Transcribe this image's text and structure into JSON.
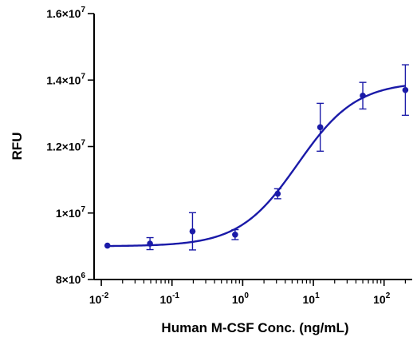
{
  "chart_data": {
    "type": "scatter",
    "title": "",
    "xlabel": "Human M-CSF Conc. (ng/mL)",
    "ylabel": "RFU",
    "x_scale": "log",
    "xlim": [
      0.0079,
      250
    ],
    "ylim": [
      8000000,
      16000000
    ],
    "x_ticks": [
      {
        "value": 0.01,
        "base": "10",
        "exp": "-2"
      },
      {
        "value": 0.1,
        "base": "10",
        "exp": "-1"
      },
      {
        "value": 1,
        "base": "10",
        "exp": "0"
      },
      {
        "value": 10,
        "base": "10",
        "exp": "1"
      },
      {
        "value": 100,
        "base": "10",
        "exp": "2"
      }
    ],
    "y_ticks": [
      {
        "value": 8000000,
        "mant": "8×10",
        "exp": "6"
      },
      {
        "value": 10000000,
        "mant": "1×10",
        "exp": "7"
      },
      {
        "value": 12000000,
        "mant": "1.2×10",
        "exp": "7"
      },
      {
        "value": 14000000,
        "mant": "1.4×10",
        "exp": "7"
      },
      {
        "value": 16000000,
        "mant": "1.6×10",
        "exp": "7"
      }
    ],
    "series": [
      {
        "color": "#1a1aa8",
        "x": [
          0.0122,
          0.0488,
          0.195,
          0.781,
          3.125,
          12.5,
          50,
          200
        ],
        "y": [
          9020000,
          9080000,
          9450000,
          9350000,
          10580000,
          12580000,
          13530000,
          13700000
        ],
        "err": [
          0,
          180000,
          560000,
          150000,
          150000,
          720000,
          400000,
          760000
        ]
      }
    ],
    "fit": {
      "model": "4PL",
      "bottom": 9000000,
      "top": 13950000,
      "ec50": 6.0,
      "hill": 1.05
    }
  }
}
